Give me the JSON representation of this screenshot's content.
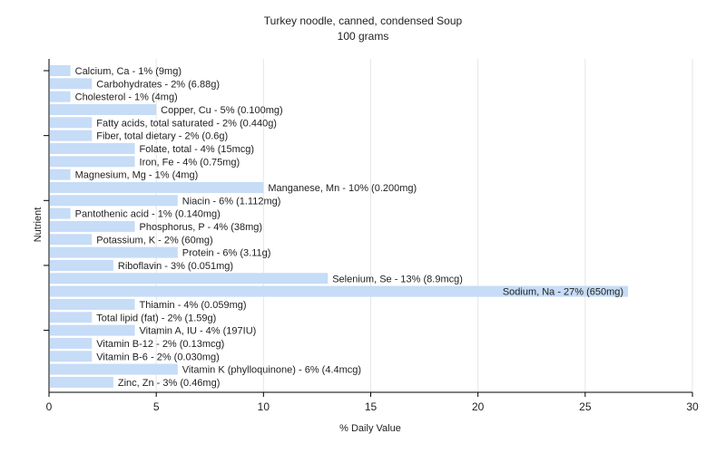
{
  "chart_data": {
    "type": "bar",
    "orientation": "horizontal",
    "title": "Turkey noodle, canned, condensed Soup",
    "subtitle": "100 grams",
    "xlabel": "% Daily Value",
    "ylabel": "Nutrient",
    "xlim": [
      0,
      30
    ],
    "x_ticks": [
      0,
      5,
      10,
      15,
      20,
      25,
      30
    ],
    "grid": true,
    "bar_color": "#c6dcf7",
    "categories": [
      "Calcium, Ca",
      "Carbohydrates",
      "Cholesterol",
      "Copper, Cu",
      "Fatty acids, total saturated",
      "Fiber, total dietary",
      "Folate, total",
      "Iron, Fe",
      "Magnesium, Mg",
      "Manganese, Mn",
      "Niacin",
      "Pantothenic acid",
      "Phosphorus, P",
      "Potassium, K",
      "Protein",
      "Riboflavin",
      "Selenium, Se",
      "Sodium, Na",
      "Thiamin",
      "Total lipid (fat)",
      "Vitamin A, IU",
      "Vitamin B-12",
      "Vitamin B-6",
      "Vitamin K (phylloquinone)",
      "Zinc, Zn"
    ],
    "values": [
      1,
      2,
      1,
      5,
      2,
      2,
      4,
      4,
      1,
      10,
      6,
      1,
      4,
      2,
      6,
      3,
      13,
      27,
      4,
      2,
      4,
      2,
      2,
      6,
      3
    ],
    "labels": [
      "Calcium, Ca - 1% (9mg)",
      "Carbohydrates - 2% (6.88g)",
      "Cholesterol - 1% (4mg)",
      "Copper, Cu - 5% (0.100mg)",
      "Fatty acids, total saturated - 2% (0.440g)",
      "Fiber, total dietary - 2% (0.6g)",
      "Folate, total - 4% (15mcg)",
      "Iron, Fe - 4% (0.75mg)",
      "Magnesium, Mg - 1% (4mg)",
      "Manganese, Mn - 10% (0.200mg)",
      "Niacin - 6% (1.112mg)",
      "Pantothenic acid - 1% (0.140mg)",
      "Phosphorus, P - 4% (38mg)",
      "Potassium, K - 2% (60mg)",
      "Protein - 6% (3.11g)",
      "Riboflavin - 3% (0.051mg)",
      "Selenium, Se - 13% (8.9mcg)",
      "Sodium, Na - 27% (650mg)",
      "Thiamin - 4% (0.059mg)",
      "Total lipid (fat) - 2% (1.59g)",
      "Vitamin A, IU - 4% (197IU)",
      "Vitamin B-12 - 2% (0.13mcg)",
      "Vitamin B-6 - 2% (0.030mg)",
      "Vitamin K (phylloquinone) - 6% (4.4mcg)",
      "Zinc, Zn - 3% (0.46mg)"
    ]
  }
}
